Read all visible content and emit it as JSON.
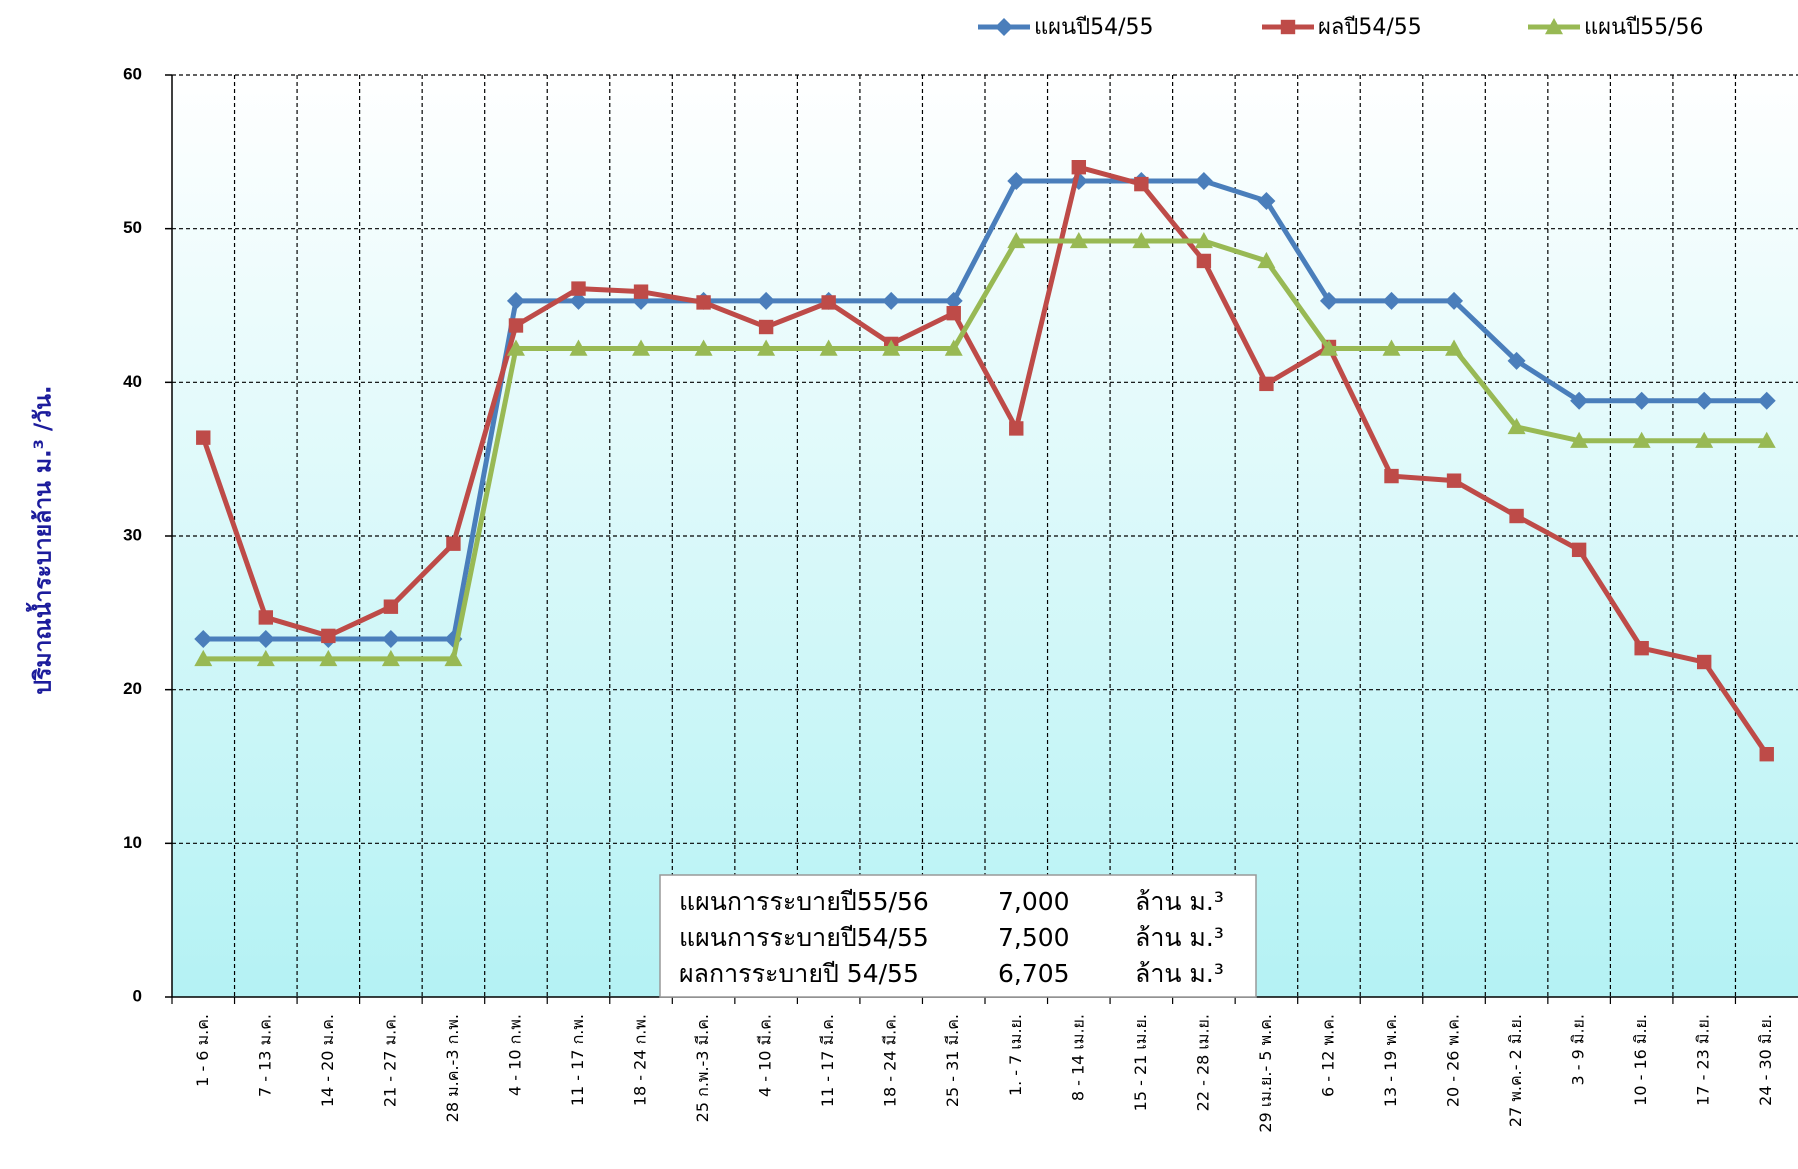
{
  "chart_data": {
    "type": "line",
    "ylabel": "ปริมาณน้ำระบายล้าน ม.³ /วัน.",
    "categories": [
      "1 - 6 ม.ค.",
      "7 - 13 ม.ค.",
      "14 - 20 ม.ค.",
      "21 - 27 ม.ค.",
      "28 ม.ค.-3 ก.พ.",
      "4 - 10 ก.พ.",
      "11 - 17 ก.พ.",
      "18 - 24 ก.พ.",
      "25 ก.พ.-3 มี.ค.",
      "4 - 10 มี.ค.",
      "11 - 17 มี.ค.",
      "18 - 24 มี.ค.",
      "25 - 31 มี.ค.",
      "1. - 7 เม.ย.",
      "8 - 14 เม.ย.",
      "15 - 21 เม.ย.",
      "22 - 28 เม.ย.",
      "29 เม.ย.- 5 พ.ค.",
      "6 - 12 พ.ค.",
      "13 - 19 พ.ค.",
      "20 - 26 พ.ค.",
      "27 พ.ค.- 2 มิ.ย.",
      "3 - 9 มิ.ย.",
      "10 - 16 มิ.ย.",
      "17 - 23 มิ.ย.",
      "24 - 30 มิ.ย."
    ],
    "series": [
      {
        "name": "แผนปี54/55",
        "color": "#4a7ebb",
        "marker": "diamond",
        "values": [
          23.3,
          23.3,
          23.3,
          23.3,
          23.3,
          45.3,
          45.3,
          45.3,
          45.3,
          45.3,
          45.3,
          45.3,
          45.3,
          53.1,
          53.1,
          53.1,
          53.1,
          51.8,
          45.3,
          45.3,
          45.3,
          41.4,
          38.8,
          38.8,
          38.8,
          38.8
        ]
      },
      {
        "name": "ผลปี54/55",
        "color": "#be4b48",
        "marker": "square",
        "values": [
          36.4,
          24.7,
          23.5,
          25.4,
          29.5,
          43.7,
          46.1,
          45.9,
          45.2,
          43.6,
          45.2,
          42.5,
          44.5,
          37.0,
          54.0,
          52.9,
          47.9,
          39.9,
          42.3,
          33.9,
          33.6,
          31.3,
          29.1,
          22.7,
          21.8,
          15.8
        ]
      },
      {
        "name": "แผนปี55/56",
        "color": "#98b954",
        "marker": "triangle",
        "values": [
          22,
          22,
          22,
          22,
          22,
          42.2,
          42.2,
          42.2,
          42.2,
          42.2,
          42.2,
          42.2,
          42.2,
          49.2,
          49.2,
          49.2,
          49.2,
          47.9,
          42.2,
          42.2,
          42.2,
          37.1,
          36.2,
          36.2,
          36.2,
          36.2
        ]
      }
    ],
    "ylim": [
      0,
      60
    ],
    "yticks": [
      0,
      10,
      20,
      30,
      40,
      50,
      60
    ],
    "grid": true,
    "annotation": [
      [
        "แผนการระบายปี55/56",
        "7,000",
        "ล้าน ม.³"
      ],
      [
        "แผนการระบายปี54/55",
        "7,500",
        "ล้าน ม.³"
      ],
      [
        "ผลการระบายปี  54/55",
        "6,705",
        "ล้าน ม.³"
      ]
    ]
  }
}
